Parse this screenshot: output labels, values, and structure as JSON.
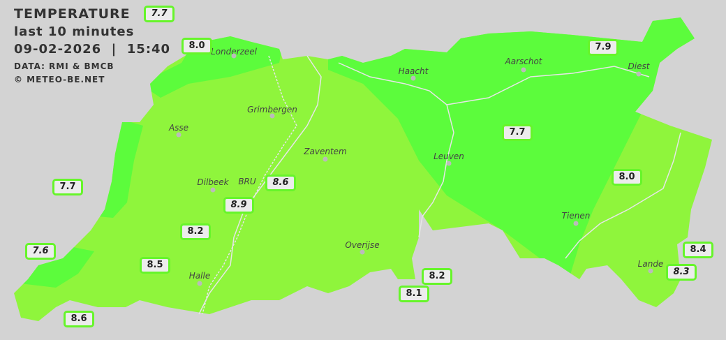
{
  "header": {
    "title": "TEMPERATURE",
    "subtitle": "last 10 minutes",
    "datetime": "09-02-2026  |  15:40",
    "source": "DATA: RMI & BMCB",
    "copyright": "© METEO-BE.NET"
  },
  "colors": {
    "background": "#d3d3d3",
    "temp_7_5_8": "#5cfc3c",
    "temp_8_8_5": "#8ff53c",
    "label_border": "#66f52a",
    "boundary": "#e6e6e6"
  },
  "cities": [
    {
      "name": "Londerzeel"
    },
    {
      "name": "Haacht"
    },
    {
      "name": "Aarschot"
    },
    {
      "name": "Diest"
    },
    {
      "name": "Grimbergen"
    },
    {
      "name": "Asse"
    },
    {
      "name": "Zaventem"
    },
    {
      "name": "Leuven"
    },
    {
      "name": "Dilbeek"
    },
    {
      "name": "BRU"
    },
    {
      "name": "Tienen"
    },
    {
      "name": "Overijse"
    },
    {
      "name": "Halle"
    },
    {
      "name": "Lande"
    }
  ],
  "stations": [
    {
      "value": "7.7",
      "italic": true
    },
    {
      "value": "8.0",
      "italic": false
    },
    {
      "value": "7.9",
      "italic": false
    },
    {
      "value": "7.7",
      "italic": false
    },
    {
      "value": "8.9",
      "italic": true
    },
    {
      "value": "8.6",
      "italic": true
    },
    {
      "value": "7.7",
      "italic": false
    },
    {
      "value": "8.0",
      "italic": false
    },
    {
      "value": "8.2",
      "italic": false
    },
    {
      "value": "7.6",
      "italic": true
    },
    {
      "value": "8.5",
      "italic": false
    },
    {
      "value": "8.2",
      "italic": false
    },
    {
      "value": "8.1",
      "italic": false
    },
    {
      "value": "8.4",
      "italic": false
    },
    {
      "value": "8.3",
      "italic": true
    },
    {
      "value": "8.6",
      "italic": false
    }
  ]
}
